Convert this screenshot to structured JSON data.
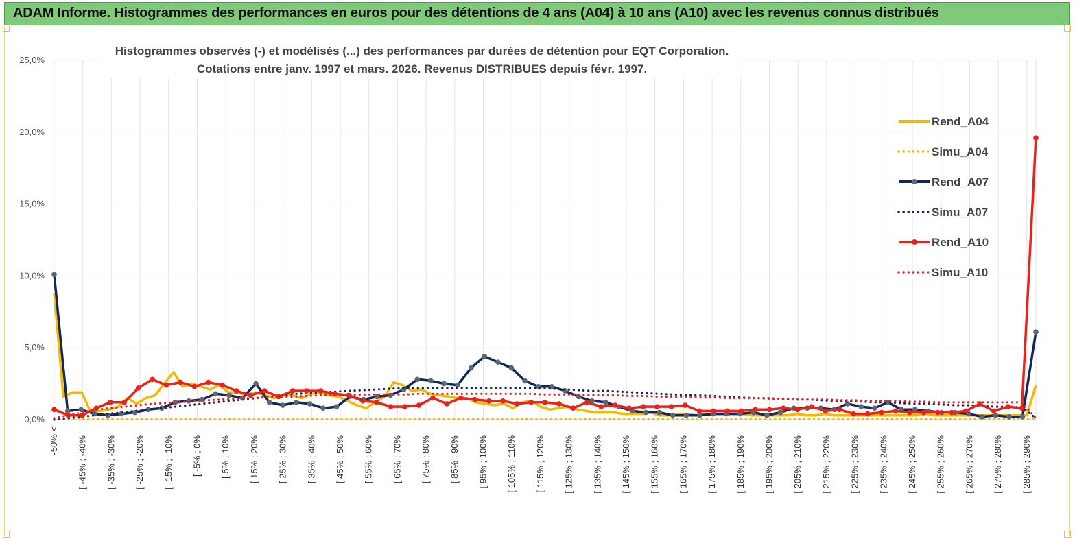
{
  "header": {
    "title": "ADAM Informe. Histogrammes des performances en euros pour des détentions de 4 ans (A04) à 10 ans (A10) avec les revenus connus distribués"
  },
  "chart_data": {
    "type": "line",
    "title": "Histogrammes observés (-)  et modélisés (...) des performances par durées de détention pour EQT Corporation.",
    "subtitle": "Cotations entre janv. 1997 et mars. 2026. Revenus DISTRIBUES depuis févr. 1997.",
    "ylim": [
      0,
      25
    ],
    "y_ticks": [
      "0,0%",
      "5,0%",
      "10,0%",
      "15,0%",
      "20,0%",
      "25,0%"
    ],
    "x_tick_labels": [
      "-50% <",
      "[ -45% ; -40%",
      "[ -35% ; -30%",
      "[ -25% ; -20%",
      "[ -15% ; -10%",
      "[ -5% ; 0%",
      "[ 5% ; 10%",
      "[ 15% ; 20%",
      "[ 25% ; 30%",
      "[ 35% ; 40%",
      "[ 45% ; 50%",
      "[ 55% ; 60%",
      "[ 65% ; 70%",
      "[ 75% ; 80%",
      "[ 85% ; 90%",
      "[ 95% ; 100%",
      "[ 105% ; 110%",
      "[ 115% ; 120%",
      "[ 125% ; 130%",
      "[ 135% ; 140%",
      "[ 145% ; 150%",
      "[ 155% ; 160%",
      "[ 165% ; 170%",
      "[ 175% ; 180%",
      "[ 185% ; 190%",
      "[ 195% ; 200%",
      "[ 205% ; 210%",
      "[ 215% ; 220%",
      "[ 225% ; 230%",
      "[ 235% ; 240%",
      "[ 245% ; 250%",
      "[ 255% ; 260%",
      "[ 265% ; 270%",
      "[ 275% ; 280%",
      "[ 285% ; 290%"
    ],
    "grid": true,
    "legend_position": "right",
    "series": [
      {
        "name": "Rend_A04",
        "style": "solid",
        "color": "#f5b800",
        "markers": false,
        "values": [
          8.8,
          1.6,
          1.9,
          1.9,
          0.5,
          0.6,
          0.7,
          0.9,
          1.5,
          1.1,
          1.5,
          1.7,
          2.5,
          3.3,
          2.3,
          2.5,
          2.3,
          2.1,
          2.4,
          1.9,
          1.9,
          1.7,
          1.9,
          1.7,
          1.5,
          1.7,
          1.7,
          1.5,
          1.8,
          1.9,
          1.7,
          1.6,
          1.3,
          1.0,
          0.8,
          1.2,
          1.6,
          2.6,
          2.4,
          2.0,
          2.1,
          1.8,
          1.7,
          1.6,
          1.5,
          1.5,
          1.2,
          1.1,
          1.0,
          1.1,
          0.8,
          1.2,
          1.3,
          0.9,
          0.7,
          0.8,
          0.9,
          0.7,
          0.6,
          0.5,
          0.5,
          0.5,
          0.4,
          0.4,
          0.4,
          0.5,
          0.3,
          0.3,
          0.4,
          0.4,
          0.3,
          0.4,
          0.4,
          0.4,
          0.5,
          0.4,
          0.3,
          0.3,
          0.3,
          0.3,
          0.3,
          0.4,
          0.3,
          0.3,
          0.4,
          0.3,
          0.3,
          0.3,
          0.3,
          0.3,
          0.3,
          0.3,
          0.3,
          0.3,
          0.3,
          0.4,
          0.3,
          0.3,
          0.3,
          0.3,
          0.3,
          0.3,
          0.3,
          0.3,
          0.3,
          0.3,
          0.3,
          2.4
        ]
      },
      {
        "name": "Simu_A04",
        "style": "dotted",
        "color": "#f5b800",
        "markers": false,
        "values": [
          0.0,
          0.05,
          0.05,
          0.05,
          0.05,
          0.05,
          0.05,
          0.05,
          0.05,
          0.05,
          0.05,
          0.05,
          0.05,
          0.05,
          0.05,
          0.05,
          0.05,
          0.05,
          0.05,
          0.05,
          0.05,
          0.05,
          0.05,
          0.05,
          0.05,
          0.05,
          0.05,
          0.05,
          0.05,
          0.05,
          0.05,
          0.05,
          0.05,
          0.05,
          0.05,
          0.05,
          0.05,
          0.05,
          0.05,
          0.05,
          0.05,
          0.05,
          0.05,
          0.05,
          0.05,
          0.05,
          0.05,
          0.05,
          0.05,
          0.05,
          0.05,
          0.05,
          0.05,
          0.05,
          0.05,
          0.05,
          0.05,
          0.05,
          0.05,
          0.05,
          0.05,
          0.05,
          0.05,
          0.05,
          0.05,
          0.05,
          0.05,
          0.05,
          0.05,
          0.05,
          0.05,
          0.05,
          0.05,
          0.05,
          0.05,
          0.05,
          0.05,
          0.05,
          0.05,
          0.05,
          0.05,
          0.05,
          0.05,
          0.05,
          0.05,
          0.05,
          0.05,
          0.05,
          0.05,
          0.05,
          0.05,
          0.05,
          0.05,
          0.05,
          0.05,
          0.05,
          0.05,
          0.05,
          0.05,
          0.05,
          0.05,
          0.05,
          0.05,
          0.05,
          0.05,
          0.05,
          0.05,
          0.1
        ]
      },
      {
        "name": "Rend_A07",
        "style": "solid",
        "color": "#12285a",
        "markers": true,
        "values": [
          10.1,
          0.6,
          0.7,
          0.4,
          0.3,
          0.4,
          0.5,
          0.7,
          0.8,
          1.2,
          1.3,
          1.4,
          1.8,
          1.7,
          1.5,
          2.5,
          1.2,
          1.0,
          1.2,
          1.1,
          0.8,
          0.9,
          1.6,
          1.4,
          1.6,
          1.7,
          2.1,
          2.8,
          2.7,
          2.5,
          2.4,
          3.6,
          4.4,
          4.0,
          3.6,
          2.7,
          2.3,
          2.3,
          2.0,
          1.6,
          1.3,
          1.2,
          0.9,
          0.6,
          0.5,
          0.5,
          0.3,
          0.3,
          0.3,
          0.4,
          0.4,
          0.4,
          0.5,
          0.3,
          0.5,
          0.8,
          0.8,
          0.8,
          0.7,
          1.1,
          0.9,
          0.8,
          1.2,
          0.7,
          0.7,
          0.6,
          0.5,
          0.5,
          0.4,
          0.2,
          0.3,
          0.2,
          0.2,
          6.1
        ]
      },
      {
        "name": "Simu_A07",
        "style": "dotted",
        "color": "#12285a",
        "markers": false,
        "values": [
          0.0,
          0.1,
          0.2,
          0.3,
          0.4,
          0.5,
          0.6,
          0.7,
          0.8,
          0.9,
          1.0,
          1.1,
          1.2,
          1.3,
          1.4,
          1.5,
          1.6,
          1.7,
          1.8,
          1.85,
          1.9,
          1.95,
          2.0,
          2.05,
          2.1,
          2.15,
          2.2,
          2.2,
          2.2,
          2.2,
          2.2,
          2.2,
          2.2,
          2.2,
          2.2,
          2.2,
          2.2,
          2.15,
          2.1,
          2.05,
          2.0,
          2.0,
          1.95,
          1.9,
          1.85,
          1.8,
          1.75,
          1.7,
          1.7,
          1.65,
          1.6,
          1.55,
          1.5,
          1.5,
          1.45,
          1.4,
          1.4,
          1.35,
          1.3,
          1.3,
          1.25,
          1.2,
          1.2,
          1.15,
          1.1,
          1.1,
          1.05,
          1.0,
          1.0,
          0.95,
          0.9,
          0.9,
          0.85,
          0.1
        ]
      },
      {
        "name": "Rend_A10",
        "style": "solid",
        "color": "#e8231a",
        "markers": true,
        "values": [
          0.7,
          0.3,
          0.3,
          0.8,
          1.2,
          1.2,
          2.2,
          2.8,
          2.4,
          2.6,
          2.3,
          2.6,
          2.4,
          2.0,
          1.7,
          2.0,
          1.6,
          2.0,
          2.0,
          2.0,
          1.8,
          1.7,
          1.3,
          1.2,
          0.9,
          0.9,
          1.0,
          1.5,
          1.1,
          1.5,
          1.4,
          1.3,
          1.3,
          1.1,
          1.2,
          1.2,
          1.1,
          0.8,
          1.2,
          0.9,
          1.0,
          0.8,
          0.9,
          0.9,
          0.9,
          1.0,
          0.6,
          0.6,
          0.6,
          0.6,
          0.7,
          0.7,
          0.8,
          0.7,
          0.9,
          0.6,
          0.7,
          0.4,
          0.4,
          0.5,
          0.6,
          0.5,
          0.5,
          0.5,
          0.5,
          0.6,
          1.1,
          0.6,
          0.9,
          0.8,
          19.6
        ]
      },
      {
        "name": "Simu_A10",
        "style": "dotted",
        "color": "#e8231a",
        "markers": false,
        "values": [
          0.1,
          0.3,
          0.5,
          0.7,
          0.8,
          0.9,
          1.0,
          1.1,
          1.15,
          1.2,
          1.3,
          1.35,
          1.4,
          1.45,
          1.5,
          1.55,
          1.6,
          1.6,
          1.65,
          1.7,
          1.7,
          1.7,
          1.75,
          1.75,
          1.75,
          1.75,
          1.8,
          1.8,
          1.8,
          1.8,
          1.8,
          1.8,
          1.8,
          1.8,
          1.8,
          1.75,
          1.75,
          1.75,
          1.7,
          1.7,
          1.7,
          1.65,
          1.65,
          1.6,
          1.6,
          1.6,
          1.55,
          1.55,
          1.5,
          1.5,
          1.5,
          1.45,
          1.45,
          1.4,
          1.4,
          1.4,
          1.35,
          1.35,
          1.3,
          1.3,
          1.3,
          1.25,
          1.25,
          1.2,
          1.2,
          1.2,
          1.2,
          1.2,
          1.2,
          1.2,
          0.1
        ]
      }
    ]
  }
}
